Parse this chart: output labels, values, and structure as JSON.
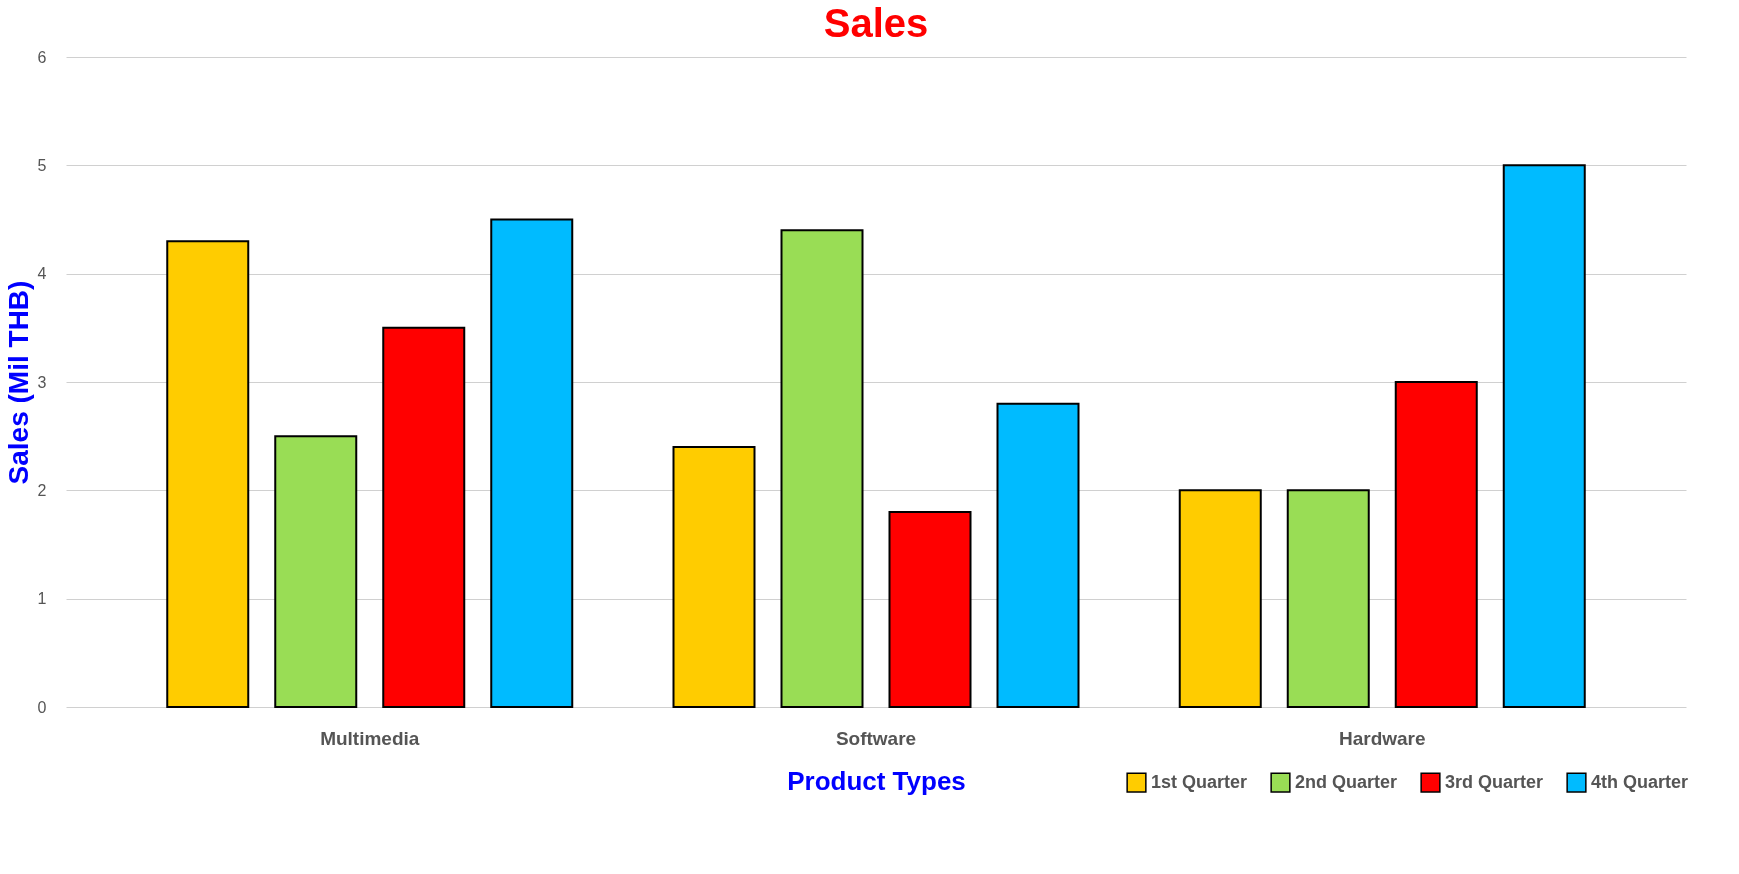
{
  "chart_data": {
    "type": "bar",
    "title": "Sales",
    "xlabel": "Product Types",
    "ylabel": "Sales (Mil THB)",
    "categories": [
      "Multimedia",
      "Software",
      "Hardware"
    ],
    "series": [
      {
        "name": "1st Quarter",
        "color": "#ffcc00",
        "values": [
          4.3,
          2.4,
          2.0
        ]
      },
      {
        "name": "2nd Quarter",
        "color": "#99dd55",
        "values": [
          2.5,
          4.4,
          2.0
        ]
      },
      {
        "name": "3rd Quarter",
        "color": "#ff0000",
        "values": [
          3.5,
          1.8,
          3.0
        ]
      },
      {
        "name": "4th Quarter",
        "color": "#00bbff",
        "values": [
          4.5,
          2.8,
          5.0
        ]
      }
    ],
    "ylim": [
      0,
      6
    ],
    "yticks": [
      0,
      1,
      2,
      3,
      4,
      5,
      6
    ],
    "grid": "y",
    "legend": "bottom right"
  }
}
